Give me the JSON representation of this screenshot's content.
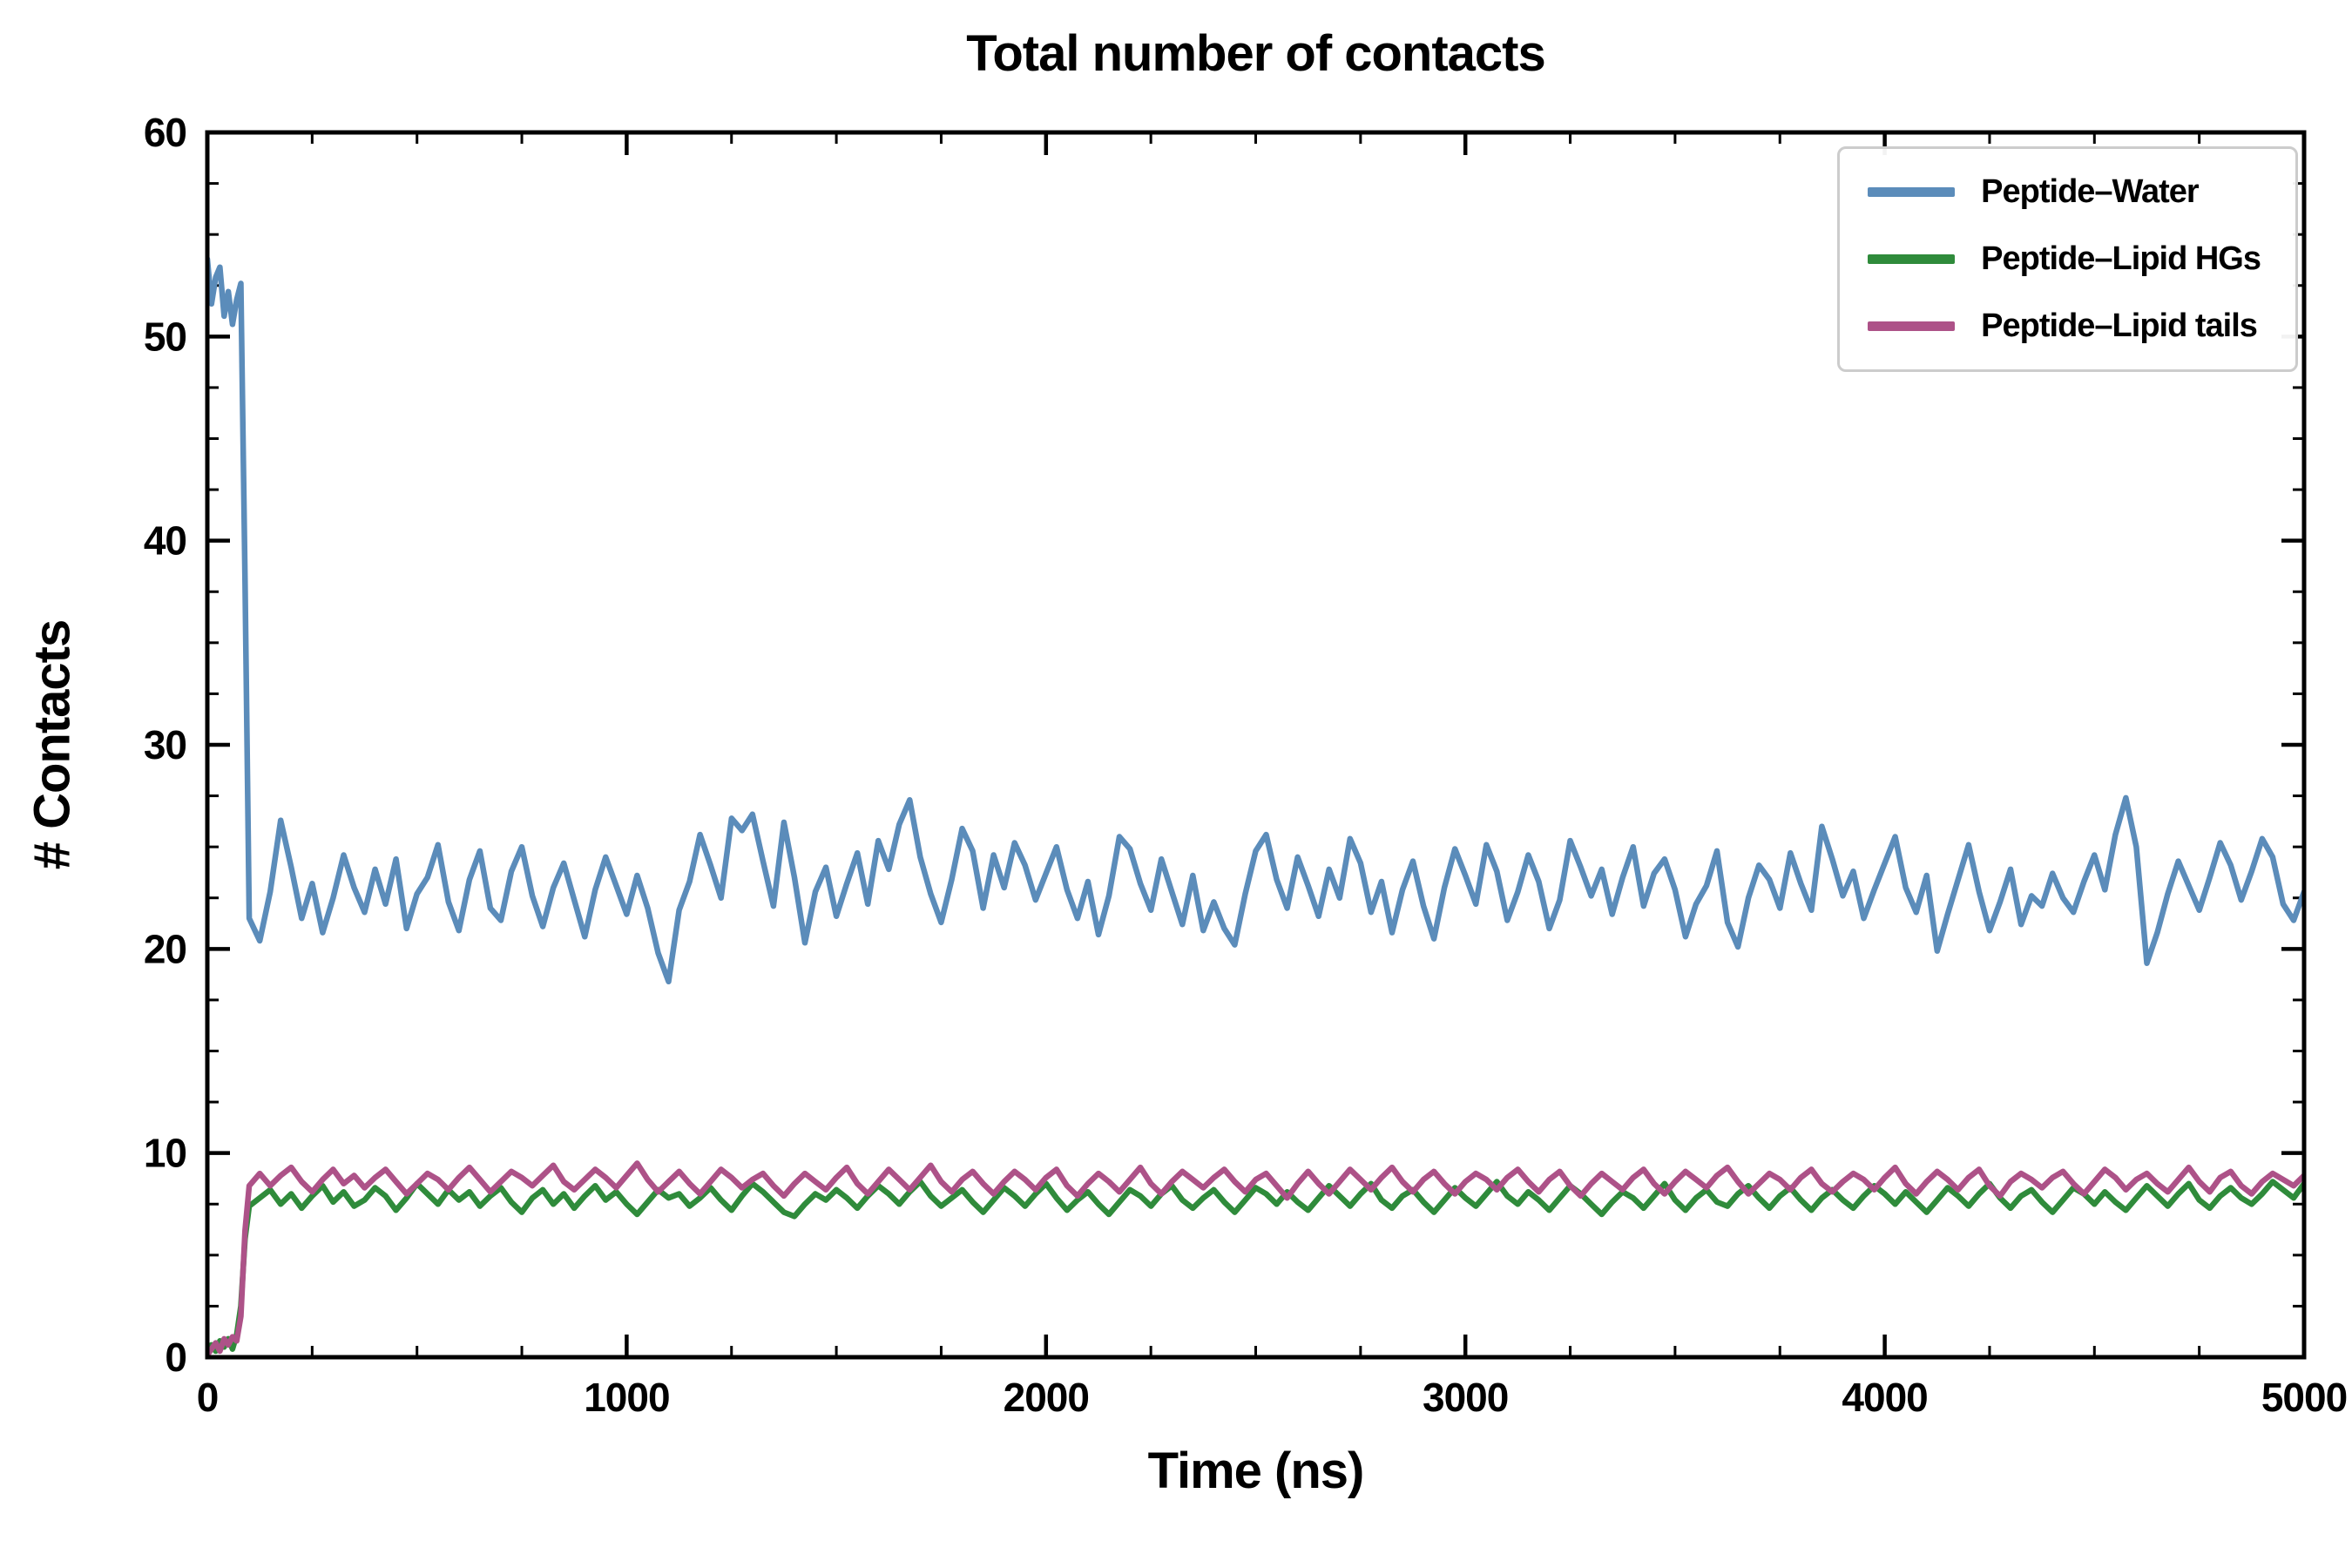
{
  "chart_data": {
    "type": "line",
    "title": "Total number of contacts",
    "xlabel": "Time (ns)",
    "ylabel": "# Contacts",
    "xlim": [
      0,
      5000
    ],
    "ylim": [
      0,
      60
    ],
    "x_ticks": [
      0,
      1000,
      2000,
      3000,
      4000,
      5000
    ],
    "y_ticks": [
      0,
      10,
      20,
      30,
      40,
      50,
      60
    ],
    "x_minor_ticks": [
      250,
      500,
      750,
      1250,
      1500,
      1750,
      2250,
      2500,
      2750,
      3250,
      3500,
      3750,
      4250,
      4500,
      4750
    ],
    "y_minor_ticks": [
      2.5,
      5,
      7.5,
      12.5,
      15,
      17.5,
      22.5,
      25,
      27.5,
      32.5,
      35,
      37.5,
      42.5,
      45,
      47.5,
      52.5,
      55,
      57.5
    ],
    "grid": false,
    "legend_position": "top-right",
    "x": {
      "prefix": [
        0,
        10,
        20,
        30,
        40,
        50,
        60,
        70,
        80,
        90,
        100
      ],
      "start": 125,
      "step": 25,
      "count": 196
    },
    "series": [
      {
        "id": "peptide-water",
        "name": "Peptide–Water",
        "color": "#5b8cba",
        "values": [
          53.8,
          51.6,
          52.9,
          53.4,
          51.0,
          52.2,
          50.6,
          51.8,
          52.6,
          38.0,
          21.5,
          20.4,
          22.8,
          26.3,
          24.0,
          21.5,
          23.2,
          20.8,
          22.5,
          24.6,
          23.0,
          21.8,
          23.9,
          22.2,
          24.4,
          21.0,
          22.7,
          23.5,
          25.1,
          22.3,
          20.9,
          23.4,
          24.8,
          22.0,
          21.4,
          23.8,
          25.0,
          22.6,
          21.1,
          23.0,
          24.2,
          22.4,
          20.6,
          22.9,
          24.5,
          23.1,
          21.7,
          23.6,
          22.0,
          19.8,
          18.4,
          21.9,
          23.3,
          25.6,
          24.1,
          22.5,
          26.4,
          25.8,
          26.6,
          24.3,
          22.1,
          26.2,
          23.5,
          20.3,
          22.8,
          24.0,
          21.6,
          23.2,
          24.7,
          22.2,
          25.3,
          23.9,
          26.1,
          27.3,
          24.5,
          22.7,
          21.3,
          23.4,
          25.9,
          24.8,
          22.0,
          24.6,
          23.0,
          25.2,
          24.1,
          22.4,
          23.7,
          25.0,
          22.9,
          21.5,
          23.3,
          20.7,
          22.6,
          25.5,
          24.9,
          23.2,
          21.9,
          24.4,
          22.8,
          21.2,
          23.6,
          20.9,
          22.3,
          21.0,
          20.2,
          22.7,
          24.8,
          25.6,
          23.4,
          22.0,
          24.5,
          23.1,
          21.6,
          23.9,
          22.5,
          25.4,
          24.2,
          21.8,
          23.3,
          20.8,
          22.9,
          24.3,
          22.1,
          20.5,
          23.0,
          24.9,
          23.6,
          22.2,
          25.1,
          23.8,
          21.4,
          22.8,
          24.6,
          23.3,
          21.0,
          22.4,
          25.3,
          24.0,
          22.6,
          23.9,
          21.7,
          23.5,
          25.0,
          22.1,
          23.7,
          24.4,
          22.9,
          20.6,
          22.2,
          23.1,
          24.8,
          21.3,
          20.1,
          22.5,
          24.1,
          23.4,
          22.0,
          24.7,
          23.2,
          21.9,
          26.0,
          24.4,
          22.6,
          23.8,
          21.5,
          22.9,
          24.2,
          25.5,
          23.0,
          21.8,
          23.6,
          19.9,
          21.7,
          23.4,
          25.1,
          22.8,
          20.9,
          22.3,
          23.9,
          21.2,
          22.6,
          22.1,
          23.7,
          22.5,
          21.8,
          23.3,
          24.6,
          22.9,
          25.6,
          27.4,
          25.0,
          19.3,
          20.8,
          22.7,
          24.3,
          23.1,
          21.9,
          23.5,
          25.2,
          24.1,
          22.4,
          23.8,
          25.4,
          24.5,
          22.2,
          21.4,
          22.8
        ]
      },
      {
        "id": "peptide-lipid-hgs",
        "name": "Peptide–Lipid HGs",
        "color": "#2f8b3b",
        "values": [
          0.2,
          0.6,
          0.3,
          0.8,
          0.5,
          0.9,
          0.4,
          1.1,
          2.5,
          5.8,
          7.4,
          7.8,
          8.2,
          7.5,
          8.0,
          7.3,
          7.9,
          8.4,
          7.6,
          8.1,
          7.4,
          7.7,
          8.3,
          7.9,
          7.2,
          7.8,
          8.5,
          8.0,
          7.5,
          8.2,
          7.7,
          8.1,
          7.4,
          7.9,
          8.3,
          7.6,
          7.1,
          7.8,
          8.2,
          7.5,
          8.0,
          7.3,
          7.9,
          8.4,
          7.7,
          8.1,
          7.5,
          7.0,
          7.6,
          8.2,
          7.8,
          8.0,
          7.4,
          7.8,
          8.3,
          7.7,
          7.2,
          7.9,
          8.5,
          8.1,
          7.6,
          7.1,
          6.9,
          7.5,
          8.0,
          7.7,
          8.2,
          7.8,
          7.3,
          7.9,
          8.4,
          8.0,
          7.5,
          8.1,
          8.6,
          7.9,
          7.4,
          7.8,
          8.2,
          7.6,
          7.1,
          7.7,
          8.3,
          7.9,
          7.4,
          8.0,
          8.5,
          7.8,
          7.2,
          7.7,
          8.1,
          7.5,
          7.0,
          7.6,
          8.2,
          7.9,
          7.4,
          8.0,
          8.4,
          7.7,
          7.3,
          7.8,
          8.2,
          7.6,
          7.1,
          7.7,
          8.3,
          8.0,
          7.5,
          8.1,
          7.6,
          7.2,
          7.8,
          8.4,
          7.9,
          7.4,
          8.0,
          8.5,
          7.7,
          7.3,
          7.9,
          8.2,
          7.6,
          7.1,
          7.7,
          8.3,
          7.8,
          7.4,
          8.0,
          8.6,
          7.9,
          7.5,
          8.1,
          7.7,
          7.2,
          7.8,
          8.4,
          8.0,
          7.5,
          7.0,
          7.6,
          8.1,
          7.8,
          7.3,
          7.9,
          8.5,
          7.7,
          7.2,
          7.8,
          8.2,
          7.6,
          7.4,
          8.0,
          8.4,
          7.8,
          7.3,
          7.9,
          8.3,
          7.7,
          7.2,
          7.8,
          8.2,
          7.7,
          7.3,
          7.9,
          8.4,
          8.0,
          7.5,
          8.1,
          7.6,
          7.1,
          7.7,
          8.3,
          7.9,
          7.4,
          8.0,
          8.5,
          7.8,
          7.3,
          7.9,
          8.2,
          7.6,
          7.1,
          7.7,
          8.3,
          8.0,
          7.5,
          8.1,
          7.6,
          7.2,
          7.8,
          8.4,
          7.9,
          7.4,
          8.0,
          8.5,
          7.7,
          7.3,
          7.9,
          8.3,
          7.8,
          7.5,
          8.0,
          8.6,
          8.2,
          7.8,
          8.5
        ]
      },
      {
        "id": "peptide-lipid-tails",
        "name": "Peptide–Lipid tails",
        "color": "#ad5288",
        "values": [
          0.1,
          0.4,
          0.7,
          0.3,
          0.9,
          0.6,
          1.0,
          0.8,
          2.0,
          6.2,
          8.4,
          9.0,
          8.4,
          8.9,
          9.3,
          8.6,
          8.1,
          8.7,
          9.2,
          8.5,
          8.9,
          8.3,
          8.8,
          9.2,
          8.6,
          8.0,
          8.5,
          9.0,
          8.7,
          8.2,
          8.8,
          9.3,
          8.7,
          8.1,
          8.6,
          9.1,
          8.8,
          8.4,
          8.9,
          9.4,
          8.6,
          8.2,
          8.7,
          9.2,
          8.8,
          8.3,
          8.9,
          9.5,
          8.7,
          8.1,
          8.6,
          9.1,
          8.5,
          8.0,
          8.6,
          9.2,
          8.8,
          8.3,
          8.7,
          9.0,
          8.4,
          7.9,
          8.5,
          9.0,
          8.6,
          8.2,
          8.8,
          9.3,
          8.5,
          8.0,
          8.6,
          9.2,
          8.7,
          8.2,
          8.8,
          9.4,
          8.6,
          8.1,
          8.7,
          9.1,
          8.5,
          8.0,
          8.6,
          9.1,
          8.7,
          8.2,
          8.8,
          9.2,
          8.4,
          7.9,
          8.5,
          9.0,
          8.6,
          8.1,
          8.7,
          9.3,
          8.5,
          8.0,
          8.6,
          9.1,
          8.7,
          8.3,
          8.8,
          9.2,
          8.6,
          8.1,
          8.7,
          9.0,
          8.4,
          7.8,
          8.5,
          9.1,
          8.5,
          8.0,
          8.6,
          9.2,
          8.7,
          8.2,
          8.8,
          9.3,
          8.6,
          8.1,
          8.7,
          9.1,
          8.5,
          8.0,
          8.6,
          9.0,
          8.7,
          8.2,
          8.8,
          9.2,
          8.6,
          8.1,
          8.7,
          9.1,
          8.4,
          7.9,
          8.5,
          9.0,
          8.6,
          8.2,
          8.8,
          9.2,
          8.5,
          8.0,
          8.6,
          9.1,
          8.7,
          8.3,
          8.9,
          9.3,
          8.6,
          8.0,
          8.5,
          9.0,
          8.7,
          8.2,
          8.8,
          9.2,
          8.5,
          8.1,
          8.6,
          9.0,
          8.7,
          8.2,
          8.8,
          9.3,
          8.5,
          8.0,
          8.6,
          9.1,
          8.7,
          8.2,
          8.8,
          9.2,
          8.4,
          7.9,
          8.6,
          9.0,
          8.7,
          8.3,
          8.8,
          9.1,
          8.5,
          8.0,
          8.6,
          9.2,
          8.8,
          8.2,
          8.7,
          9.0,
          8.5,
          8.1,
          8.7,
          9.3,
          8.6,
          8.1,
          8.8,
          9.1,
          8.4,
          8.0,
          8.6,
          9.0,
          8.7,
          8.4,
          8.9
        ]
      }
    ]
  }
}
